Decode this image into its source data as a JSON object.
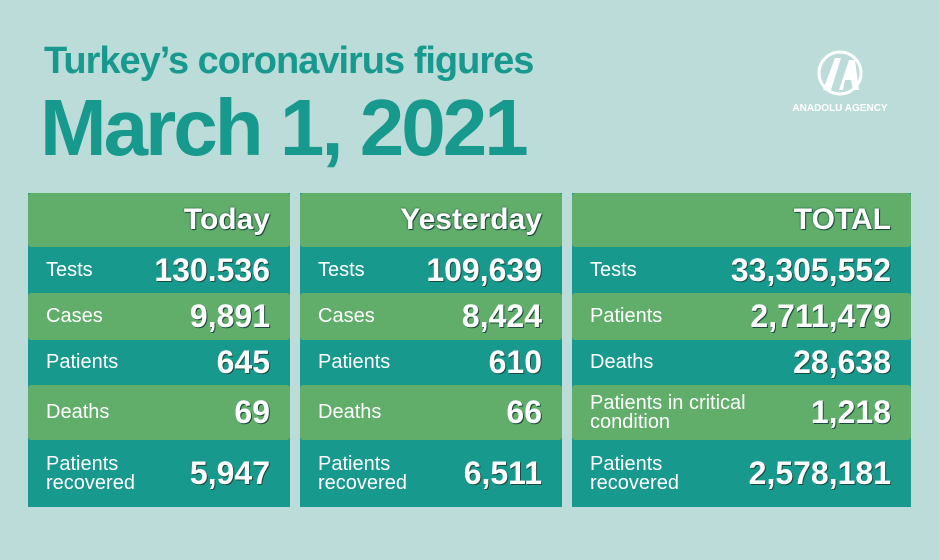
{
  "header": {
    "title": "Turkey’s coronavirus figures",
    "date": "March 1, 2021",
    "logo_text": "ANADOLU AGENCY"
  },
  "panels": [
    {
      "header": "Today",
      "rows": [
        {
          "label": "Tests",
          "value": "130.536"
        },
        {
          "label": "Cases",
          "value": "9,891"
        },
        {
          "label": "Patients",
          "value": "645"
        },
        {
          "label": "Deaths",
          "value": "69"
        },
        {
          "label": "Patients recovered",
          "value": "5,947"
        }
      ]
    },
    {
      "header": "Yesterday",
      "rows": [
        {
          "label": "Tests",
          "value": "109,639"
        },
        {
          "label": "Cases",
          "value": "8,424"
        },
        {
          "label": "Patients",
          "value": "610"
        },
        {
          "label": "Deaths",
          "value": "66"
        },
        {
          "label": "Patients recovered",
          "value": "6,511"
        }
      ]
    },
    {
      "header": "TOTAL",
      "rows": [
        {
          "label": "Tests",
          "value": "33,305,552"
        },
        {
          "label": "Patients",
          "value": "2,711,479"
        },
        {
          "label": "Deaths",
          "value": "28,638"
        },
        {
          "label": "Patients in critical condition",
          "value": "1,218"
        },
        {
          "label": "Patients recovered",
          "value": "2,578,181"
        }
      ]
    }
  ]
}
